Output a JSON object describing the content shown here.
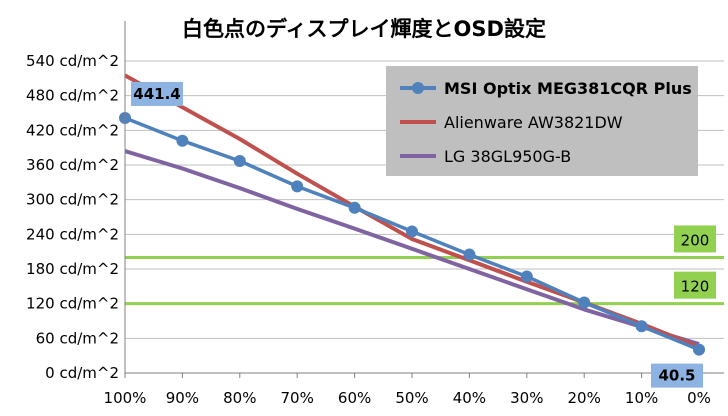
{
  "chart_data": {
    "type": "line",
    "title": "白色点のディスプレイ輝度とOSD設定",
    "xlabel": "",
    "ylabel": "",
    "x_ticks": [
      "100%",
      "90%",
      "80%",
      "70%",
      "60%",
      "50%",
      "40%",
      "30%",
      "20%",
      "10%",
      "0%"
    ],
    "x_values": [
      100,
      90,
      80,
      70,
      60,
      50,
      40,
      30,
      20,
      10,
      0
    ],
    "y_ticks": [
      "0 cd/m^2",
      "60 cd/m^2",
      "120 cd/m^2",
      "180 cd/m^2",
      "240 cd/m^2",
      "300 cd/m^2",
      "360 cd/m^2",
      "420 cd/m^2",
      "480 cd/m^2",
      "540 cd/m^2"
    ],
    "ylim": [
      0,
      540
    ],
    "xlim": [
      100,
      0
    ],
    "grid": "horizontal",
    "legend_position": "top-right",
    "series": [
      {
        "name": "MSI Optix MEG381CQR Plus",
        "color": "#4f81bd",
        "values": [
          441.4,
          402,
          367,
          323,
          286,
          245,
          205,
          167,
          122,
          81,
          40.5
        ]
      },
      {
        "name": "Alienware AW3821DW",
        "color": "#c0504d",
        "values": [
          515,
          460,
          405,
          345,
          288,
          232,
          195,
          158,
          122,
          85,
          45
        ]
      },
      {
        "name": "LG 38GL950G-B",
        "color": "#8064a2",
        "values": [
          384,
          354,
          320,
          284,
          250,
          215,
          180,
          145,
          110,
          80,
          50
        ]
      }
    ],
    "reference_lines": [
      {
        "value": 200,
        "label": "200",
        "color": "#92d050"
      },
      {
        "value": 120,
        "label": "120",
        "color": "#92d050"
      }
    ],
    "annotations": [
      {
        "series_index": 0,
        "point_index": 0,
        "label": "441.4",
        "color": "#8db3e2"
      },
      {
        "series_index": 0,
        "point_index": 10,
        "label": "40.5",
        "color": "#8db3e2"
      }
    ]
  }
}
